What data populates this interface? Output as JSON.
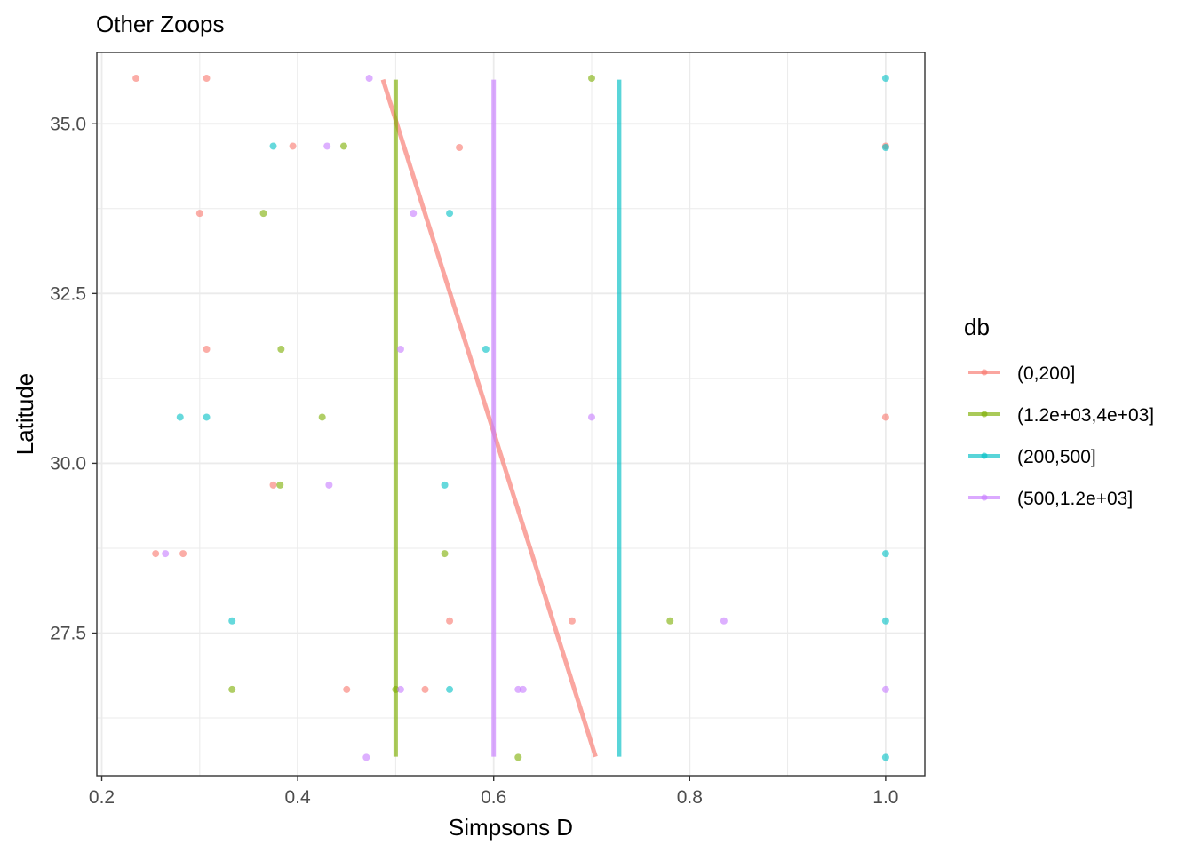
{
  "chart_data": {
    "type": "scatter",
    "title": "Other Zoops",
    "xlabel": "Simpsons D",
    "ylabel": "Latitude",
    "xlim": [
      0.195,
      1.04
    ],
    "ylim": [
      25.4,
      36.05
    ],
    "x_ticks": [
      0.2,
      0.4,
      0.6,
      0.8,
      1.0
    ],
    "x_tick_labels": [
      "0.2",
      "0.4",
      "0.6",
      "0.8",
      "1.0"
    ],
    "y_ticks": [
      27.5,
      30.0,
      32.5,
      35.0
    ],
    "y_tick_labels": [
      "27.5",
      "30.0",
      "32.5",
      "35.0"
    ],
    "grid": true,
    "legend": {
      "title": "db",
      "placement": "right"
    },
    "series": [
      {
        "name": "(0,200]",
        "color": "#F8766D",
        "points": [
          [
            0.235,
            35.67
          ],
          [
            0.307,
            35.67
          ],
          [
            0.395,
            34.67
          ],
          [
            0.565,
            34.65
          ],
          [
            1.0,
            34.67
          ],
          [
            0.3,
            33.68
          ],
          [
            0.307,
            31.68
          ],
          [
            1.0,
            30.68
          ],
          [
            0.375,
            29.68
          ],
          [
            0.255,
            28.67
          ],
          [
            0.283,
            28.67
          ],
          [
            0.555,
            27.68
          ],
          [
            0.68,
            27.68
          ],
          [
            0.45,
            26.67
          ],
          [
            0.53,
            26.67
          ]
        ],
        "fit_line": {
          "x": [
            0.487,
            0.704
          ],
          "y": [
            35.65,
            25.68
          ]
        }
      },
      {
        "name": "(1.2e+03,4e+03]",
        "color": "#7CAE00",
        "points": [
          [
            0.7,
            35.67
          ],
          [
            0.447,
            34.67
          ],
          [
            0.365,
            33.68
          ],
          [
            0.383,
            31.68
          ],
          [
            0.425,
            30.68
          ],
          [
            0.382,
            29.68
          ],
          [
            0.55,
            28.67
          ],
          [
            0.78,
            27.68
          ],
          [
            0.333,
            26.67
          ],
          [
            0.5,
            26.67
          ],
          [
            0.625,
            25.67
          ]
        ],
        "fit_line": {
          "x": [
            0.5,
            0.5
          ],
          "y": [
            35.65,
            25.68
          ]
        }
      },
      {
        "name": "(200,500]",
        "color": "#00BFC4",
        "points": [
          [
            1.0,
            35.67
          ],
          [
            0.375,
            34.67
          ],
          [
            1.0,
            34.65
          ],
          [
            0.555,
            33.68
          ],
          [
            0.592,
            31.68
          ],
          [
            0.28,
            30.68
          ],
          [
            0.307,
            30.68
          ],
          [
            0.55,
            29.68
          ],
          [
            1.0,
            28.67
          ],
          [
            0.333,
            27.68
          ],
          [
            1.0,
            27.68
          ],
          [
            0.555,
            26.67
          ],
          [
            1.0,
            25.67
          ]
        ],
        "fit_line": {
          "x": [
            0.728,
            0.728
          ],
          "y": [
            35.65,
            25.68
          ]
        }
      },
      {
        "name": "(500,1.2e+03]",
        "color": "#C77CFF",
        "points": [
          [
            0.473,
            35.67
          ],
          [
            0.43,
            34.67
          ],
          [
            0.518,
            33.68
          ],
          [
            0.505,
            31.68
          ],
          [
            0.7,
            30.68
          ],
          [
            0.432,
            29.68
          ],
          [
            0.265,
            28.67
          ],
          [
            0.835,
            27.68
          ],
          [
            0.505,
            26.67
          ],
          [
            0.625,
            26.67
          ],
          [
            0.63,
            26.67
          ],
          [
            1.0,
            26.67
          ],
          [
            0.47,
            25.67
          ]
        ],
        "fit_line": {
          "x": [
            0.6,
            0.6
          ],
          "y": [
            35.65,
            25.68
          ]
        }
      }
    ]
  }
}
